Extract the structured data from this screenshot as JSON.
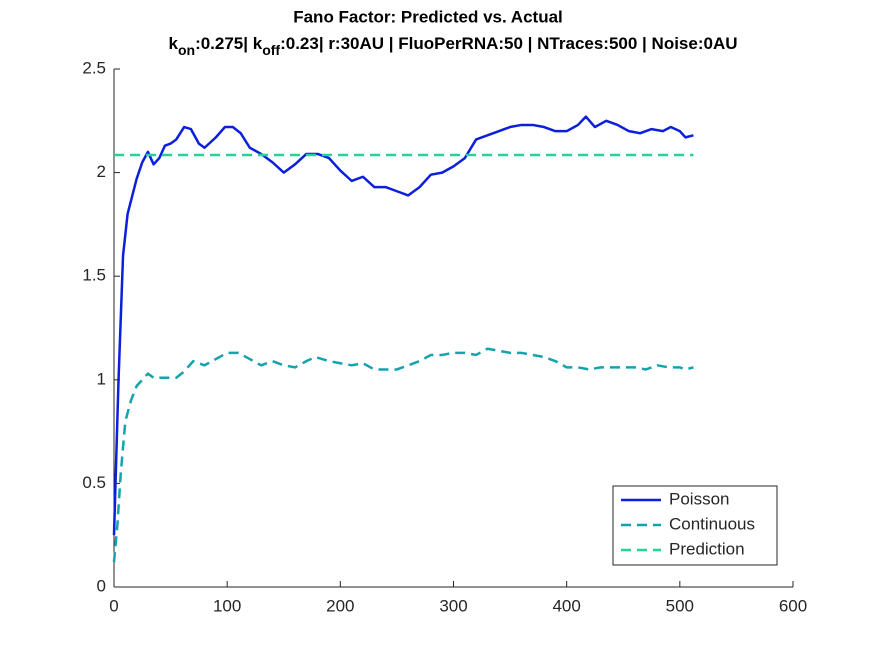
{
  "chart_data": {
    "type": "line",
    "title": "Fano Factor: Predicted vs. Actual",
    "subtitle": [
      {
        "text": "k"
      },
      {
        "text": "on",
        "sub": true
      },
      {
        "text": ":0.275| k"
      },
      {
        "text": "off",
        "sub": true
      },
      {
        "text": ":0.23| r:30AU | FluoPerRNA:50 | NTraces:500 | Noise:0AU"
      }
    ],
    "xlim": [
      0,
      600
    ],
    "xticks": [
      0,
      100,
      200,
      300,
      400,
      500,
      600
    ],
    "ylim": [
      0,
      2.5
    ],
    "yticks": [
      0,
      0.5,
      1,
      1.5,
      2,
      2.5
    ],
    "grid": false,
    "legend_position": "southeast",
    "series": [
      {
        "name": "Poisson",
        "color": "#0b1fdc",
        "dashed": false,
        "x": [
          0,
          4,
          8,
          12,
          20,
          25,
          30,
          35,
          40,
          45,
          50,
          55,
          62,
          68,
          75,
          80,
          90,
          98,
          105,
          112,
          120,
          130,
          140,
          150,
          160,
          170,
          180,
          190,
          200,
          210,
          220,
          230,
          240,
          250,
          260,
          270,
          280,
          290,
          300,
          310,
          320,
          330,
          340,
          350,
          360,
          370,
          380,
          390,
          400,
          410,
          417,
          425,
          435,
          445,
          455,
          465,
          475,
          485,
          492,
          500,
          505,
          512
        ],
        "values": [
          0.25,
          1.0,
          1.6,
          1.8,
          1.97,
          2.05,
          2.1,
          2.04,
          2.07,
          2.13,
          2.14,
          2.16,
          2.22,
          2.21,
          2.14,
          2.12,
          2.17,
          2.22,
          2.22,
          2.19,
          2.12,
          2.09,
          2.05,
          2.0,
          2.04,
          2.09,
          2.09,
          2.07,
          2.01,
          1.96,
          1.98,
          1.93,
          1.93,
          1.91,
          1.89,
          1.93,
          1.99,
          2.0,
          2.03,
          2.07,
          2.16,
          2.18,
          2.2,
          2.22,
          2.23,
          2.23,
          2.22,
          2.2,
          2.2,
          2.23,
          2.27,
          2.22,
          2.25,
          2.23,
          2.2,
          2.19,
          2.21,
          2.2,
          2.22,
          2.2,
          2.17,
          2.18
        ]
      },
      {
        "name": "Continuous",
        "color": "#14a3ad",
        "dashed": true,
        "x": [
          0,
          3,
          6,
          10,
          15,
          20,
          25,
          30,
          35,
          45,
          55,
          62,
          70,
          80,
          90,
          100,
          110,
          120,
          130,
          140,
          150,
          160,
          170,
          178,
          190,
          200,
          210,
          220,
          230,
          240,
          250,
          260,
          270,
          280,
          290,
          300,
          310,
          320,
          330,
          340,
          350,
          360,
          370,
          380,
          390,
          400,
          410,
          420,
          430,
          440,
          450,
          460,
          470,
          480,
          490,
          500,
          505,
          512
        ],
        "values": [
          0.12,
          0.3,
          0.55,
          0.8,
          0.9,
          0.97,
          1.0,
          1.03,
          1.01,
          1.01,
          1.01,
          1.04,
          1.09,
          1.07,
          1.1,
          1.13,
          1.13,
          1.1,
          1.07,
          1.09,
          1.07,
          1.06,
          1.09,
          1.11,
          1.09,
          1.08,
          1.07,
          1.08,
          1.05,
          1.05,
          1.05,
          1.07,
          1.09,
          1.12,
          1.12,
          1.13,
          1.13,
          1.12,
          1.15,
          1.14,
          1.13,
          1.13,
          1.12,
          1.11,
          1.09,
          1.06,
          1.06,
          1.05,
          1.06,
          1.06,
          1.06,
          1.06,
          1.05,
          1.07,
          1.06,
          1.06,
          1.05,
          1.06
        ]
      },
      {
        "name": "Prediction",
        "color": "#22d39c",
        "dashed": true,
        "x": [
          0,
          512
        ],
        "values": [
          2.085,
          2.085
        ]
      }
    ]
  }
}
